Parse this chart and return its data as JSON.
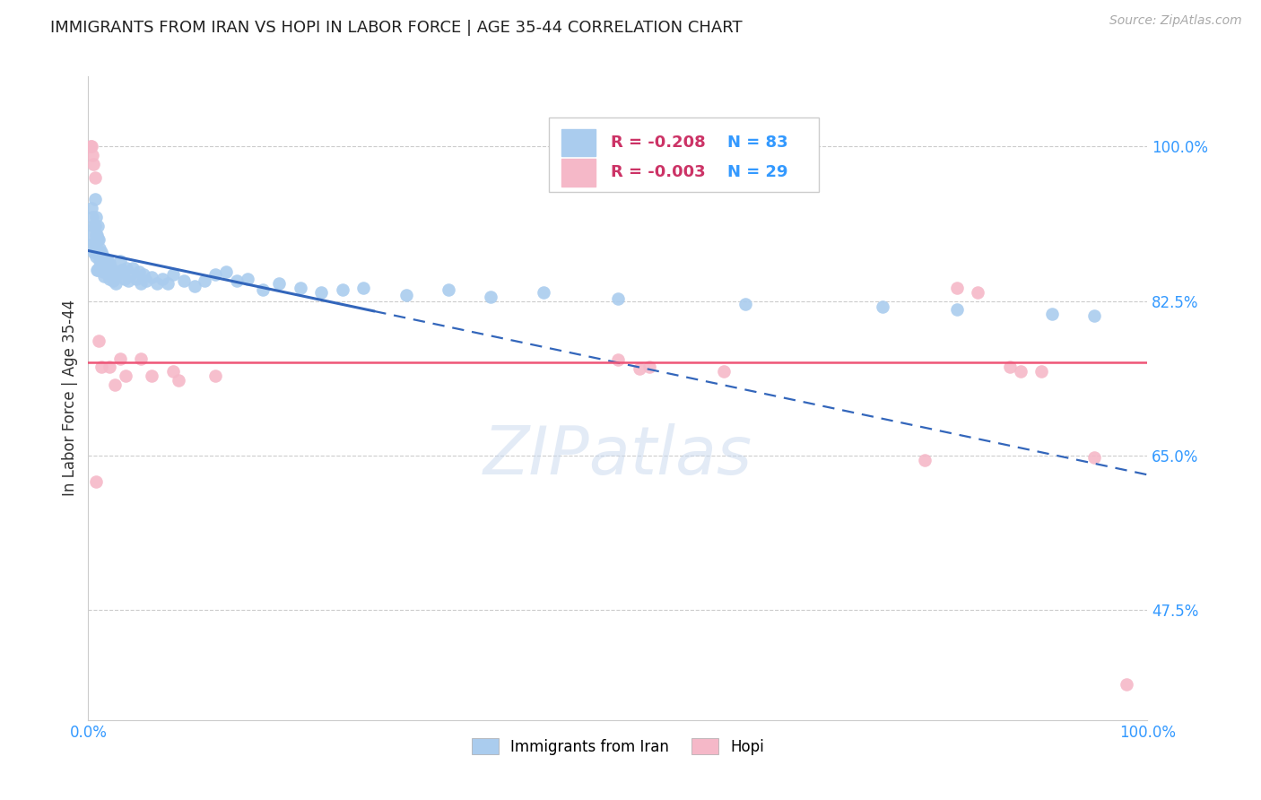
{
  "title": "IMMIGRANTS FROM IRAN VS HOPI IN LABOR FORCE | AGE 35-44 CORRELATION CHART",
  "source": "Source: ZipAtlas.com",
  "ylabel": "In Labor Force | Age 35-44",
  "xlim": [
    0.0,
    1.0
  ],
  "ylim": [
    0.35,
    1.08
  ],
  "x_tick_labels": [
    "0.0%",
    "100.0%"
  ],
  "x_tick_vals": [
    0.0,
    1.0
  ],
  "y_tick_labels_right": [
    "100.0%",
    "82.5%",
    "65.0%",
    "47.5%"
  ],
  "y_tick_values_right": [
    1.0,
    0.825,
    0.65,
    0.475
  ],
  "grid_color": "#cccccc",
  "background_color": "#ffffff",
  "iran_R": "-0.208",
  "iran_N": "83",
  "hopi_R": "-0.003",
  "hopi_N": "29",
  "iran_color": "#aaccee",
  "hopi_color": "#f5b8c8",
  "iran_line_color": "#3366bb",
  "hopi_line_color": "#ee5577",
  "iran_trend_y_start": 0.882,
  "iran_trend_y_end": 0.628,
  "iran_trend_solid_end": 0.27,
  "hopi_trend_y": 0.755,
  "iran_x": [
    0.002,
    0.003,
    0.004,
    0.004,
    0.005,
    0.005,
    0.006,
    0.006,
    0.006,
    0.007,
    0.007,
    0.007,
    0.008,
    0.008,
    0.008,
    0.009,
    0.009,
    0.009,
    0.009,
    0.01,
    0.01,
    0.01,
    0.011,
    0.011,
    0.012,
    0.012,
    0.013,
    0.013,
    0.014,
    0.014,
    0.015,
    0.015,
    0.016,
    0.017,
    0.018,
    0.019,
    0.02,
    0.02,
    0.022,
    0.023,
    0.025,
    0.026,
    0.028,
    0.03,
    0.032,
    0.034,
    0.036,
    0.038,
    0.04,
    0.042,
    0.045,
    0.048,
    0.05,
    0.052,
    0.055,
    0.06,
    0.065,
    0.07,
    0.075,
    0.08,
    0.09,
    0.1,
    0.11,
    0.12,
    0.13,
    0.14,
    0.15,
    0.165,
    0.18,
    0.2,
    0.22,
    0.24,
    0.26,
    0.3,
    0.34,
    0.38,
    0.43,
    0.5,
    0.62,
    0.75,
    0.82,
    0.91,
    0.95
  ],
  "iran_y": [
    0.9,
    0.93,
    0.92,
    0.89,
    0.91,
    0.88,
    0.94,
    0.91,
    0.89,
    0.92,
    0.9,
    0.875,
    0.9,
    0.88,
    0.86,
    0.91,
    0.895,
    0.88,
    0.86,
    0.895,
    0.878,
    0.862,
    0.885,
    0.87,
    0.88,
    0.865,
    0.876,
    0.86,
    0.875,
    0.858,
    0.87,
    0.853,
    0.865,
    0.86,
    0.87,
    0.855,
    0.868,
    0.85,
    0.862,
    0.848,
    0.858,
    0.845,
    0.855,
    0.87,
    0.86,
    0.85,
    0.862,
    0.848,
    0.855,
    0.862,
    0.85,
    0.858,
    0.845,
    0.855,
    0.848,
    0.852,
    0.845,
    0.85,
    0.845,
    0.855,
    0.848,
    0.842,
    0.848,
    0.855,
    0.858,
    0.848,
    0.85,
    0.838,
    0.845,
    0.84,
    0.835,
    0.838,
    0.84,
    0.832,
    0.838,
    0.83,
    0.835,
    0.828,
    0.822,
    0.818,
    0.815,
    0.81,
    0.808
  ],
  "hopi_x": [
    0.002,
    0.003,
    0.004,
    0.005,
    0.006,
    0.007,
    0.01,
    0.012,
    0.02,
    0.025,
    0.03,
    0.035,
    0.05,
    0.06,
    0.08,
    0.085,
    0.12,
    0.5,
    0.52,
    0.53,
    0.6,
    0.79,
    0.82,
    0.84,
    0.87,
    0.88,
    0.9,
    0.95,
    0.98
  ],
  "hopi_y": [
    1.0,
    1.0,
    0.99,
    0.98,
    0.965,
    0.62,
    0.78,
    0.75,
    0.75,
    0.73,
    0.76,
    0.74,
    0.76,
    0.74,
    0.745,
    0.735,
    0.74,
    0.758,
    0.748,
    0.75,
    0.745,
    0.645,
    0.84,
    0.835,
    0.75,
    0.745,
    0.745,
    0.648,
    0.39
  ]
}
